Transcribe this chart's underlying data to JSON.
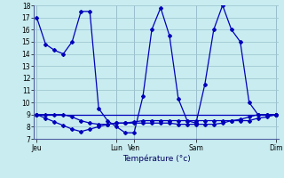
{
  "background_color": "#c8ecf0",
  "grid_color": "#a0c8d0",
  "line_color": "#0000bb",
  "xlabel": "Température (°c)",
  "ylim": [
    7,
    18
  ],
  "yticks": [
    7,
    8,
    9,
    10,
    11,
    12,
    13,
    14,
    15,
    16,
    17,
    18
  ],
  "xtick_labels": [
    "Jeu",
    "Lun",
    "Ven",
    "Sam",
    "Dim"
  ],
  "xtick_positions": [
    0,
    9,
    11,
    18,
    27
  ],
  "line1_x": [
    0,
    1,
    2,
    3,
    4,
    5,
    6,
    7,
    8,
    9,
    10,
    11,
    12,
    13,
    14,
    15,
    16,
    17,
    18,
    19,
    20,
    21,
    22,
    23,
    24,
    25,
    26,
    27
  ],
  "line1_y": [
    17,
    14.8,
    14.3,
    14.0,
    15.0,
    17.5,
    17.5,
    9.5,
    8.5,
    8.0,
    7.5,
    7.5,
    10.5,
    16.0,
    17.8,
    15.5,
    10.3,
    8.5,
    8.3,
    11.5,
    16.0,
    18.0,
    16.0,
    15.0,
    10.0,
    9.0,
    9.0,
    9.0
  ],
  "line2_x": [
    0,
    1,
    2,
    3,
    4,
    5,
    6,
    7,
    8,
    9,
    10,
    11,
    12,
    13,
    14,
    15,
    16,
    17,
    18,
    19,
    20,
    21,
    22,
    23,
    24,
    25,
    26,
    27
  ],
  "line2_y": [
    9.0,
    9.0,
    9.0,
    9.0,
    8.8,
    8.5,
    8.3,
    8.2,
    8.2,
    8.3,
    8.3,
    8.4,
    8.5,
    8.5,
    8.5,
    8.5,
    8.5,
    8.5,
    8.5,
    8.5,
    8.5,
    8.5,
    8.5,
    8.5,
    8.5,
    8.7,
    8.8,
    9.0
  ],
  "line3_x": [
    0,
    1,
    2,
    3,
    4,
    5,
    6,
    7,
    8,
    9,
    10,
    11,
    12,
    13,
    14,
    15,
    16,
    17,
    18,
    19,
    20,
    21,
    22,
    23,
    24,
    25,
    26,
    27
  ],
  "line3_y": [
    9.0,
    8.7,
    8.4,
    8.1,
    7.8,
    7.6,
    7.8,
    8.0,
    8.2,
    8.3,
    8.3,
    8.3,
    8.3,
    8.3,
    8.3,
    8.3,
    8.2,
    8.2,
    8.2,
    8.2,
    8.2,
    8.3,
    8.5,
    8.6,
    8.8,
    9.0,
    9.0,
    9.0
  ],
  "line4_x": [
    0,
    27
  ],
  "line4_y": [
    9.0,
    9.0
  ]
}
